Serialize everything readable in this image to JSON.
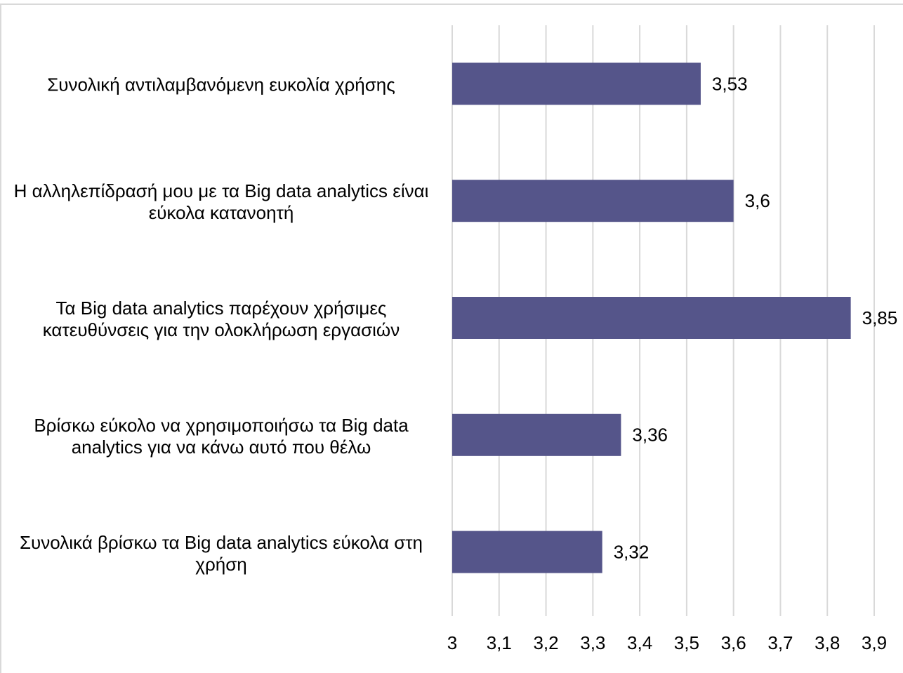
{
  "chart_data": {
    "type": "barh",
    "categories": [
      "Συνολική αντιλαμβανόμενη ευκολία χρήσης",
      "Η αλληλεπίδρασή μου με τα Big data analytics είναι εύκολα κατανοητή",
      "Τα Big data analytics παρέχουν χρήσιμες κατευθύνσεις για την ολοκλήρωση εργασιών",
      "Βρίσκω εύκολο να χρησιμοποιήσω τα Big data analytics για να κάνω αυτό που θέλω",
      "Συνολικά βρίσκω τα Big data analytics εύκολα στη χρήση"
    ],
    "values": [
      3.53,
      3.6,
      3.85,
      3.36,
      3.32
    ],
    "value_labels": [
      "3,53",
      "3,6",
      "3,85",
      "3,36",
      "3,32"
    ],
    "color": "#55558a",
    "xlim": [
      3,
      3.9
    ],
    "xticks": [
      3,
      {
        "value": 3.1,
        "label": "3,1"
      },
      {
        "value": 3.2,
        "label": "3,2"
      },
      {
        "value": 3.3,
        "label": "3,3"
      },
      {
        "value": 3.4,
        "label": "3,4"
      },
      {
        "value": 3.5,
        "label": "3,5"
      },
      {
        "value": 3.6,
        "label": "3,6"
      },
      {
        "value": 3.7,
        "label": "3,7"
      },
      {
        "value": 3.8,
        "label": "3,8"
      },
      {
        "value": 3.9,
        "label": "3,9"
      }
    ],
    "grid": true
  }
}
